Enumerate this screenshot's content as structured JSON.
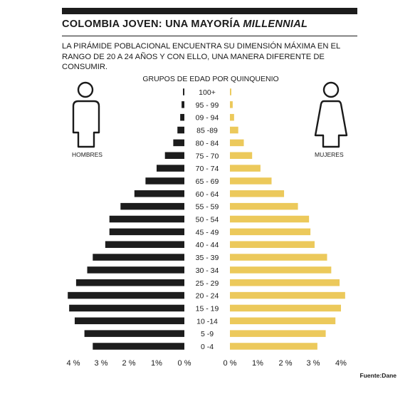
{
  "header": {
    "title_main": "COLOMBIA JOVEN: UNA MAYORÍA ",
    "title_emphasis": "MILLENNIAL",
    "subtitle": "LA PIRÁMIDE POBLACIONAL ENCUENTRA SU DIMENSIÓN MÁXIMA EN EL RANGO DE 20 A 24 AÑOS Y CON ELLO, UNA MANERA DIFERENTE DE CONSUMIR."
  },
  "source": "Fuente:Dane",
  "colors": {
    "men": "#1c1c1c",
    "women": "#ecc95b",
    "text": "#1a1a1a"
  },
  "icons": {
    "men": "man-icon",
    "women": "woman-icon"
  },
  "chart_data": {
    "type": "bar",
    "orientation": "horizontal-population-pyramid",
    "title": "GRUPOS DE EDAD POR QUINQUENIO",
    "categories": [
      "100+",
      "95 - 99",
      "09 - 94",
      "85 -89",
      "80 - 84",
      "75 - 70",
      "70 - 74",
      "65 - 69",
      "60 - 64",
      "55 - 59",
      "50 - 54",
      "45 - 49",
      "40 - 44",
      "35 - 39",
      "30 - 34",
      "25 - 29",
      "20 - 24",
      "15 - 19",
      "10 -14",
      "5 -9",
      "0 -4"
    ],
    "series": [
      {
        "name": "HOMBRES",
        "values": [
          0.05,
          0.1,
          0.15,
          0.25,
          0.4,
          0.7,
          1.0,
          1.4,
          1.8,
          2.3,
          2.7,
          2.7,
          2.85,
          3.3,
          3.5,
          3.9,
          4.2,
          4.15,
          3.95,
          3.6,
          3.3
        ]
      },
      {
        "name": "MUJERES",
        "values": [
          0.05,
          0.1,
          0.15,
          0.3,
          0.5,
          0.8,
          1.1,
          1.5,
          1.95,
          2.45,
          2.85,
          2.9,
          3.05,
          3.5,
          3.65,
          3.95,
          4.15,
          4.0,
          3.8,
          3.45,
          3.15
        ]
      }
    ],
    "xlim": [
      0,
      4
    ],
    "left_ticks": [
      "4 %",
      "3 %",
      "2 %",
      "1%",
      "0 %"
    ],
    "right_ticks": [
      "0 %",
      "1%",
      "2 %",
      "3 %",
      "4%"
    ],
    "legend_left": "HOMBRES",
    "legend_right": "MUJERES"
  }
}
